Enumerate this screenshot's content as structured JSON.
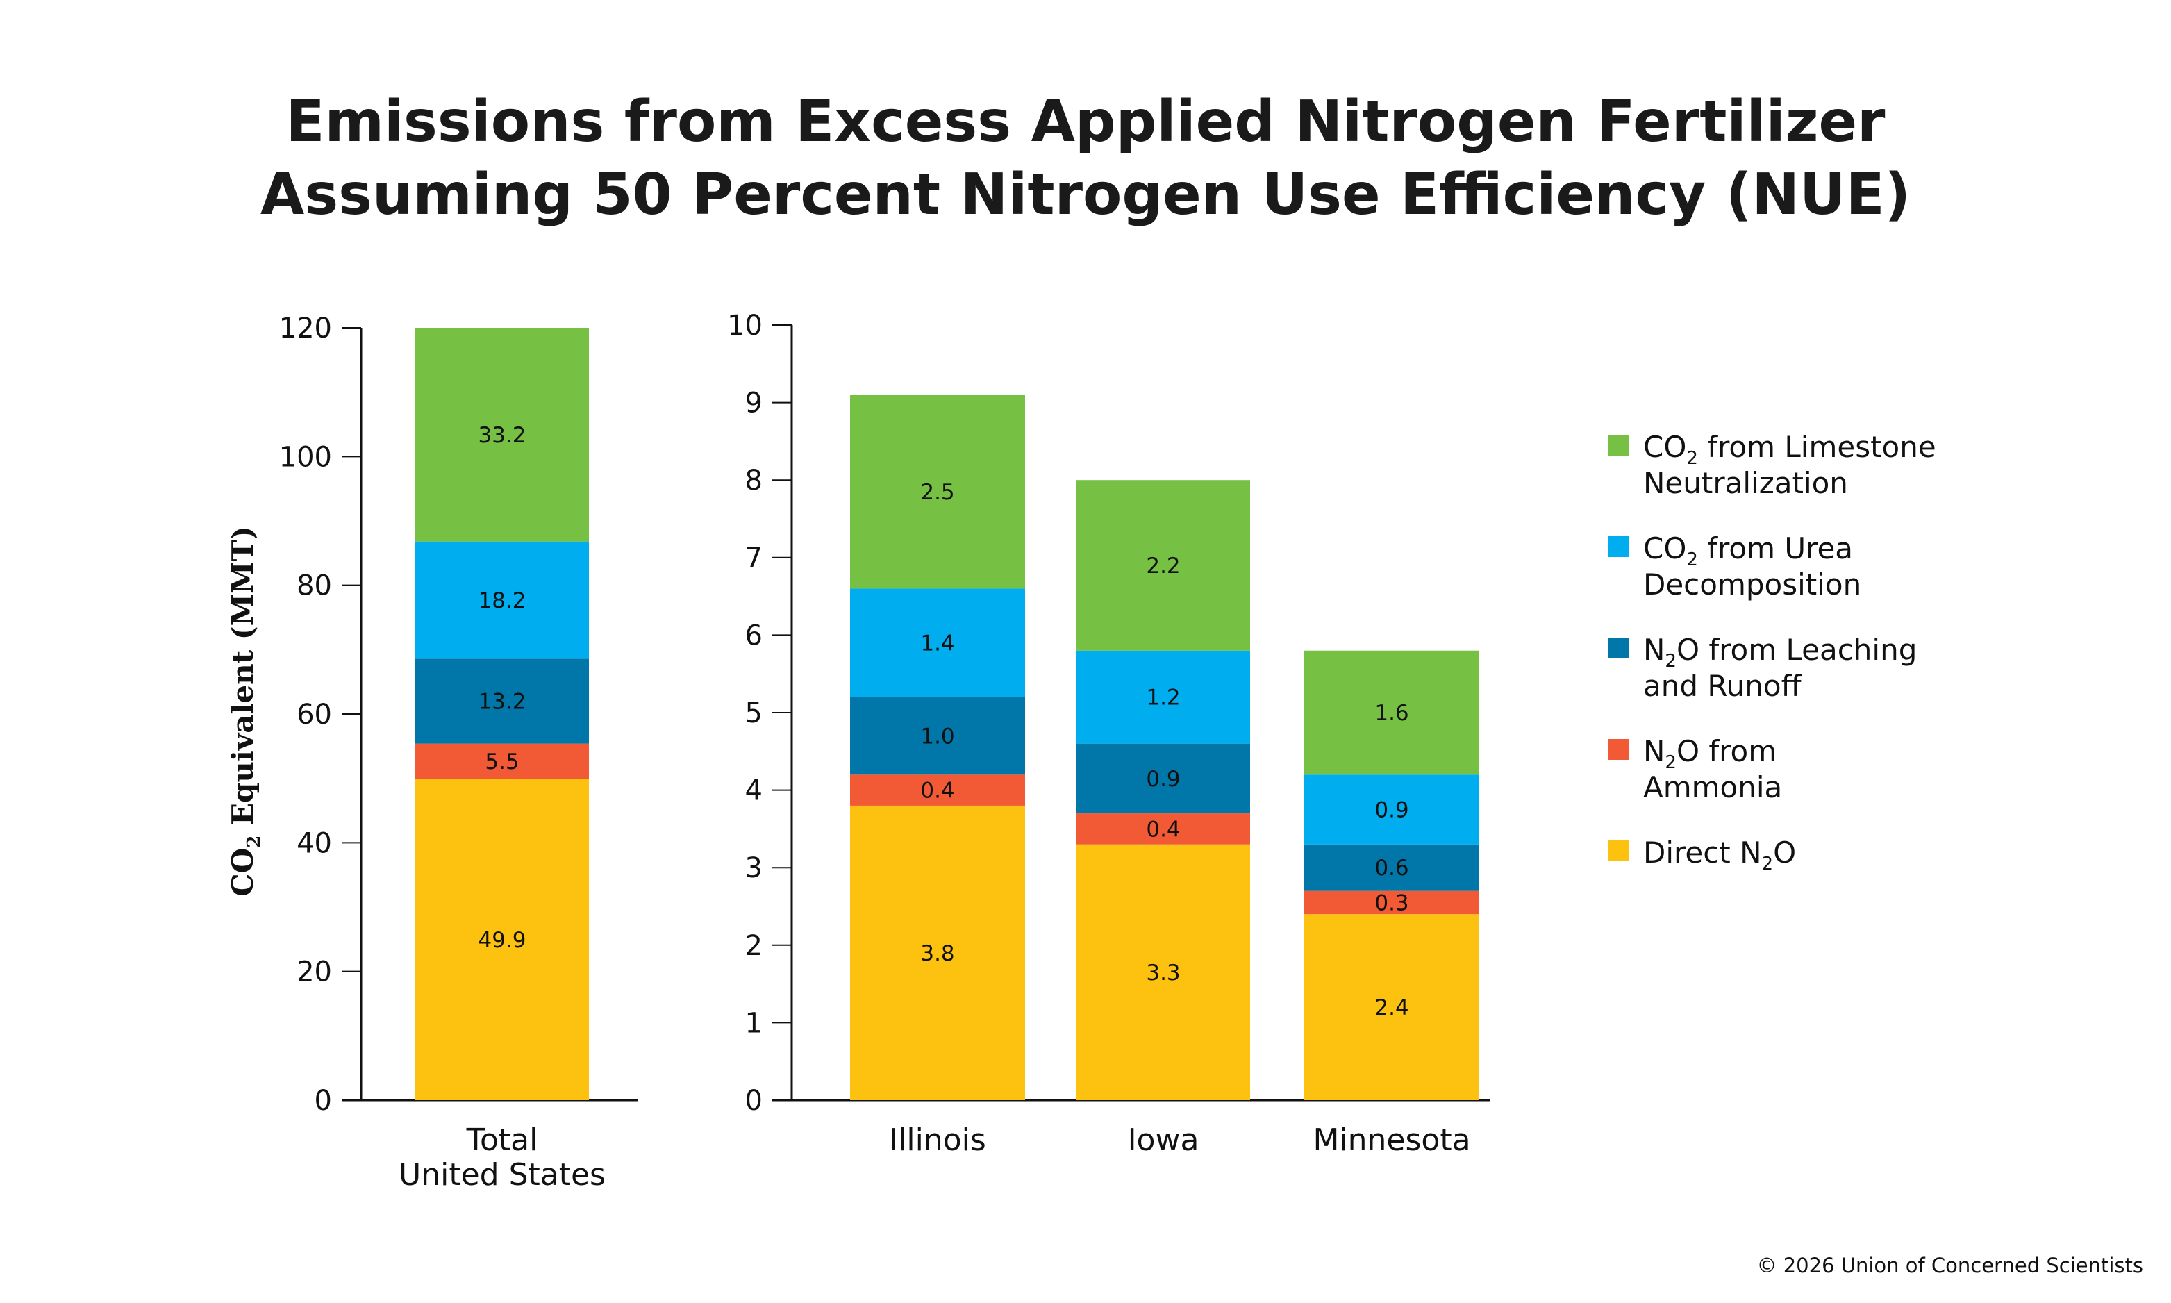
{
  "title": {
    "line1": "Emissions from Excess Applied Nitrogen Fertilizer",
    "line2": "Assuming 50 Percent Nitrogen Use Efficiency (NUE)"
  },
  "copyright": "© 2026 Union of Concerned Scientists",
  "chart_data": [
    {
      "type": "bar",
      "stacked": true,
      "title": "",
      "ylabel": {
        "pre": "CO",
        "sub": "2",
        "post": " Equivalent (MMT)"
      },
      "ylim": [
        0,
        120
      ],
      "yticks": [
        0,
        20,
        40,
        60,
        80,
        100,
        120
      ],
      "grid": false,
      "categories": [
        [
          "Total",
          "United States"
        ]
      ],
      "series": [
        {
          "name": "Direct N2O",
          "values": [
            49.9
          ],
          "labels": [
            "49.9"
          ]
        },
        {
          "name": "N2O from Ammonia",
          "values": [
            5.5
          ],
          "labels": [
            "5.5"
          ]
        },
        {
          "name": "N2O from Leaching and Runoff",
          "values": [
            13.2
          ],
          "labels": [
            "13.2"
          ]
        },
        {
          "name": "CO2 from Urea Decomposition",
          "values": [
            18.2
          ],
          "labels": [
            "18.2"
          ]
        },
        {
          "name": "CO2 from Limestone Neutralization",
          "values": [
            33.2
          ],
          "labels": [
            "33.2"
          ]
        }
      ]
    },
    {
      "type": "bar",
      "stacked": true,
      "title": "",
      "ylim": [
        0,
        10
      ],
      "yticks": [
        0,
        1,
        2,
        3,
        4,
        5,
        6,
        7,
        8,
        9,
        10
      ],
      "grid": false,
      "categories": [
        [
          "Illinois"
        ],
        [
          "Iowa"
        ],
        [
          "Minnesota"
        ]
      ],
      "series": [
        {
          "name": "Direct N2O",
          "values": [
            3.8,
            3.3,
            2.4
          ],
          "labels": [
            "3.8",
            "3.3",
            "2.4"
          ]
        },
        {
          "name": "N2O from Ammonia",
          "values": [
            0.4,
            0.4,
            0.3
          ],
          "labels": [
            "0.4",
            "0.4",
            "0.3"
          ]
        },
        {
          "name": "N2O from Leaching and Runoff",
          "values": [
            1.0,
            0.9,
            0.6
          ],
          "labels": [
            "1.0",
            "0.9",
            "0.6"
          ]
        },
        {
          "name": "CO2 from Urea Decomposition",
          "values": [
            1.4,
            1.2,
            0.9
          ],
          "labels": [
            "1.4",
            "1.2",
            "0.9"
          ]
        },
        {
          "name": "CO2 from Limestone Neutralization",
          "values": [
            2.5,
            2.2,
            1.6
          ],
          "labels": [
            "2.5",
            "2.2",
            "1.6"
          ]
        }
      ]
    }
  ],
  "legend": {
    "placement": "right",
    "items": [
      {
        "pre": "CO",
        "sub": "2",
        "post": " from Limestone",
        "line2": "Neutralization",
        "color": "#76c043"
      },
      {
        "pre": "CO",
        "sub": "2",
        "post": " from Urea",
        "line2": "Decomposition",
        "color": "#00aeef"
      },
      {
        "pre": "N",
        "sub": "2",
        "post": "O from Leaching",
        "line2": "and Runoff",
        "color": "#0077a8"
      },
      {
        "pre": "N",
        "sub": "2",
        "post": "O from",
        "line2": "Ammonia",
        "color": "#f15a35"
      },
      {
        "pre": "Direct N",
        "sub": "2",
        "post": "O",
        "line2": "",
        "color": "#fdc210"
      }
    ]
  },
  "series_colors": [
    "#fdc210",
    "#f15a35",
    "#0077a8",
    "#00aeef",
    "#76c043"
  ],
  "label_text_colors": [
    "#111111",
    "#111111",
    "#ffffff",
    "#111111",
    "#111111"
  ]
}
